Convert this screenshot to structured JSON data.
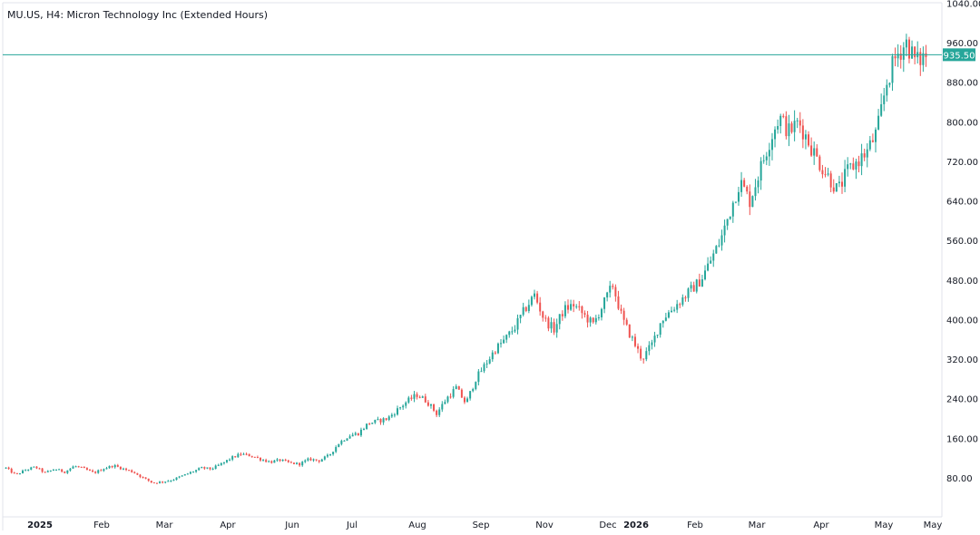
{
  "chart_title": "MU.US, H4: Micron Technology Inc (Extended Hours)",
  "colors": {
    "up": "#26a69a",
    "down": "#ef5350",
    "price_line": "#26a69a",
    "axis_text": "#131722",
    "border": "#e0e3eb"
  },
  "chart_data": {
    "type": "candlestick",
    "title": "MU.US, H4: Micron Technology Inc (Extended Hours)",
    "xlabel": "",
    "ylabel": "",
    "ylim": [
      40,
      1040
    ],
    "y_ticks": [
      "80.00",
      "160.00",
      "240.00",
      "320.00",
      "400.00",
      "480.00",
      "560.00",
      "640.00",
      "720.00",
      "800.00",
      "880.00",
      "960.00",
      "1040.00"
    ],
    "x_ticks": [
      {
        "label": "2025",
        "bold": true
      },
      {
        "label": "Feb",
        "bold": false
      },
      {
        "label": "Mar",
        "bold": false
      },
      {
        "label": "Apr",
        "bold": false
      },
      {
        "label": "Jun",
        "bold": false
      },
      {
        "label": "Jul",
        "bold": false
      },
      {
        "label": "Aug",
        "bold": false
      },
      {
        "label": "Sep",
        "bold": false
      },
      {
        "label": "Nov",
        "bold": false
      },
      {
        "label": "Dec",
        "bold": false
      },
      {
        "label": "2026",
        "bold": true
      },
      {
        "label": "Feb",
        "bold": false
      },
      {
        "label": "Mar",
        "bold": false
      },
      {
        "label": "Apr",
        "bold": false
      },
      {
        "label": "May",
        "bold": false
      },
      {
        "label": "May",
        "bold": false
      }
    ],
    "current_price": 935.5,
    "current_price_label": "935.50",
    "price_path": [
      100,
      86,
      96,
      102,
      90,
      98,
      92,
      104,
      98,
      90,
      99,
      105,
      98,
      92,
      80,
      70,
      72,
      76,
      84,
      92,
      100,
      98,
      108,
      120,
      128,
      125,
      118,
      112,
      116,
      110,
      108,
      118,
      115,
      125,
      150,
      165,
      170,
      190,
      195,
      200,
      218,
      235,
      248,
      235,
      210,
      240,
      262,
      230,
      280,
      310,
      340,
      360,
      385,
      420,
      450,
      400,
      380,
      420,
      430,
      410,
      390,
      430,
      470,
      400,
      360,
      320,
      350,
      400,
      420,
      440,
      460,
      480,
      520,
      560,
      620,
      680,
      640,
      700,
      760,
      810,
      780,
      800,
      760,
      720,
      690,
      660,
      700,
      720,
      740,
      780,
      880,
      935,
      960,
      920,
      935
    ],
    "grid": false,
    "legend": "none"
  }
}
